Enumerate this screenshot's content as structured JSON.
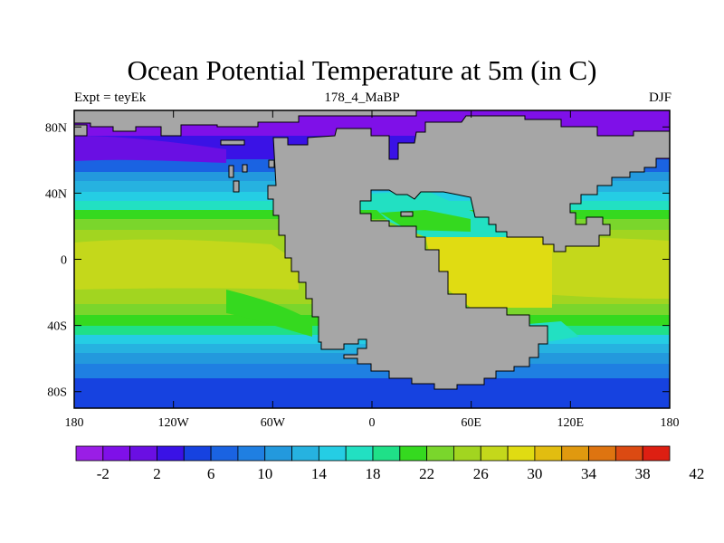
{
  "map": {
    "title": "Ocean Potential Temperature at 5m (in C)",
    "left_string": "Expt = teyEk",
    "center_string": "178_4_MaBP",
    "right_string": "DJF",
    "land_color": "#a6a6a6",
    "x_ticks": [
      {
        "lon": -180,
        "label": "180"
      },
      {
        "lon": -120,
        "label": "120W"
      },
      {
        "lon": -60,
        "label": "60W"
      },
      {
        "lon": 0,
        "label": "0"
      },
      {
        "lon": 60,
        "label": "60E"
      },
      {
        "lon": 120,
        "label": "120E"
      },
      {
        "lon": 180,
        "label": "180"
      }
    ],
    "y_ticks": [
      {
        "lat": 80,
        "label": "80N"
      },
      {
        "lat": 40,
        "label": "40N"
      },
      {
        "lat": 0,
        "label": "0"
      },
      {
        "lat": -40,
        "label": "40S"
      },
      {
        "lat": -80,
        "label": "80S"
      }
    ]
  },
  "colorbar": {
    "colors": [
      "#9a1ee6",
      "#7f10e8",
      "#6a0fe3",
      "#3a12e6",
      "#1642e0",
      "#1a63e2",
      "#1f7fe2",
      "#2399dd",
      "#26b2e0",
      "#25cde4",
      "#22e0c2",
      "#1fe088",
      "#35d91f",
      "#7ad62c",
      "#a2d520",
      "#c4d81b",
      "#e0dc12",
      "#e2bd10",
      "#e0990f",
      "#de7410",
      "#dc4a12",
      "#dd1f12"
    ],
    "labels": [
      "-2",
      "2",
      "6",
      "10",
      "14",
      "18",
      "22",
      "26",
      "30",
      "34",
      "38",
      "42"
    ]
  }
}
